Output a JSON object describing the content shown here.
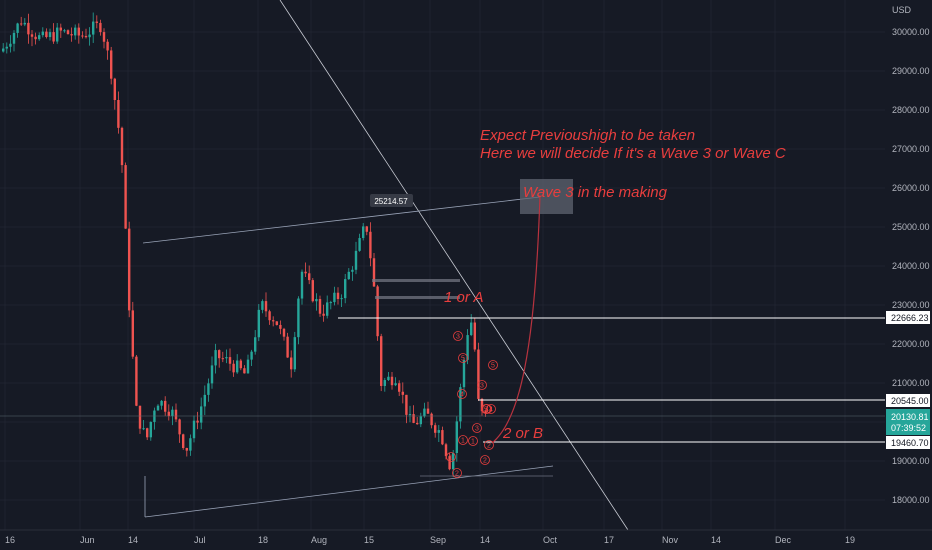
{
  "chart_data": {
    "type": "candlestick",
    "currency": "USD",
    "x_ticks": [
      "16",
      "Jun",
      "14",
      "Jul",
      "18",
      "Aug",
      "15",
      "Sep",
      "14",
      "Oct",
      "17",
      "Nov",
      "14",
      "Dec",
      "19"
    ],
    "y_ticks": [
      "30000.00",
      "29000.00",
      "28000.00",
      "27000.00",
      "26000.00",
      "25000.00",
      "24000.00",
      "23000.00",
      "22000.00",
      "21000.00",
      "20000.00",
      "19000.00",
      "18000.00"
    ],
    "ylim": [
      17500,
      30500
    ],
    "price_labels": [
      {
        "text": "22666.23",
        "value": 22666.23,
        "style": "level"
      },
      {
        "text": "20545.00",
        "value": 20545.0,
        "style": "level"
      },
      {
        "text": "20130.81",
        "sub": "07:39:52",
        "value": 20130.81,
        "style": "current"
      },
      {
        "text": "19460.70",
        "value": 19460.7,
        "style": "level"
      }
    ],
    "high_marker": {
      "text": "25214.57",
      "value": 25214.57
    },
    "annotations": {
      "expect_line1": "Expect Previoushigh to be taken",
      "expect_line2": "Here we will decide If it's a Wave 3 or Wave C",
      "wave3": "Wave 3 in the making",
      "one_or_a": "1 or A",
      "two_or_b": "2 or B"
    },
    "wave_labels": [
      "1",
      "2",
      "3",
      "4",
      "5",
      "1",
      "2",
      "3",
      "4",
      "5",
      "1",
      "2",
      "3",
      "4",
      "5"
    ],
    "colors": {
      "up": "#26a69a",
      "down": "#ef5350",
      "annotation": "#e83e3e",
      "background": "#161a25",
      "grid": "#1f2330",
      "trendline": "#9aa4b8"
    }
  }
}
